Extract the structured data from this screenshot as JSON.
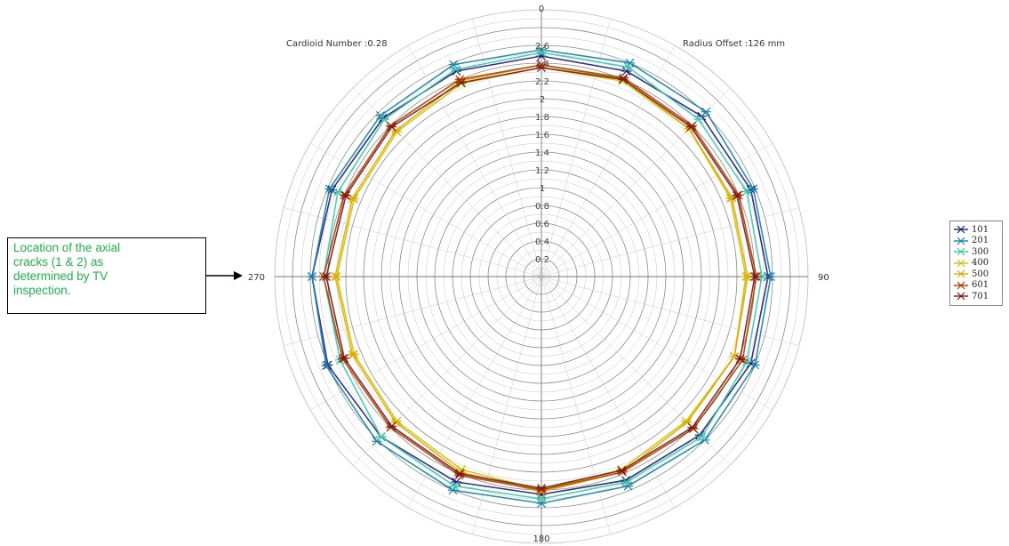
{
  "annotation": {
    "lines": [
      "Location of the axial",
      "cracks (1 & 2) as",
      "determined by TV",
      "inspection."
    ]
  },
  "chart_data": {
    "type": "polar-line",
    "corner_left": "Cardioid Number :0.28",
    "corner_right": "Radius Offset :126 mm",
    "angle_labels": [
      "0",
      "90",
      "180",
      "270"
    ],
    "radial_ticks": [
      "0.2",
      "0.4",
      "0.6",
      "0.8",
      "1",
      "1.2",
      "1.4",
      "1.6",
      "1.8",
      "2",
      "2.2",
      "2.4",
      "2.6"
    ],
    "angles_deg": [
      0,
      22.5,
      45,
      67.5,
      90,
      112.5,
      135,
      157.5,
      180,
      202.5,
      225,
      247.5,
      270,
      292.5,
      315,
      337.5
    ],
    "series": [
      {
        "name": "101",
        "color": "#1c1a7a",
        "r": [
          2.48,
          2.5,
          2.55,
          2.55,
          2.55,
          2.55,
          2.52,
          2.48,
          2.45,
          2.5,
          2.55,
          2.6,
          2.58,
          2.55,
          2.52,
          2.5
        ]
      },
      {
        "name": "201",
        "color": "#1a7fa6",
        "r": [
          2.55,
          2.6,
          2.62,
          2.58,
          2.58,
          2.6,
          2.6,
          2.55,
          2.55,
          2.6,
          2.62,
          2.62,
          2.58,
          2.58,
          2.56,
          2.58
        ]
      },
      {
        "name": "300",
        "color": "#3cc8a8",
        "r": [
          2.52,
          2.55,
          2.5,
          2.5,
          2.48,
          2.5,
          2.55,
          2.5,
          2.5,
          2.55,
          2.55,
          2.45,
          2.45,
          2.48,
          2.5,
          2.52
        ]
      },
      {
        "name": "400",
        "color": "#c8c20e",
        "r": [
          2.35,
          2.38,
          2.35,
          2.3,
          2.3,
          2.35,
          2.3,
          2.35,
          2.4,
          2.35,
          2.3,
          2.28,
          2.3,
          2.28,
          2.3,
          2.35
        ]
      },
      {
        "name": "500",
        "color": "#e0a800",
        "r": [
          2.38,
          2.4,
          2.35,
          2.32,
          2.32,
          2.35,
          2.32,
          2.38,
          2.42,
          2.38,
          2.32,
          2.3,
          2.32,
          2.3,
          2.32,
          2.38
        ]
      },
      {
        "name": "601",
        "color": "#a83b00",
        "r": [
          2.38,
          2.42,
          2.4,
          2.4,
          2.42,
          2.45,
          2.42,
          2.38,
          2.4,
          2.42,
          2.4,
          2.42,
          2.45,
          2.4,
          2.4,
          2.4
        ]
      },
      {
        "name": "701",
        "color": "#7a1414",
        "r": [
          2.35,
          2.4,
          2.38,
          2.38,
          2.4,
          2.42,
          2.4,
          2.36,
          2.38,
          2.4,
          2.38,
          2.4,
          2.42,
          2.38,
          2.38,
          2.36
        ]
      }
    ]
  }
}
